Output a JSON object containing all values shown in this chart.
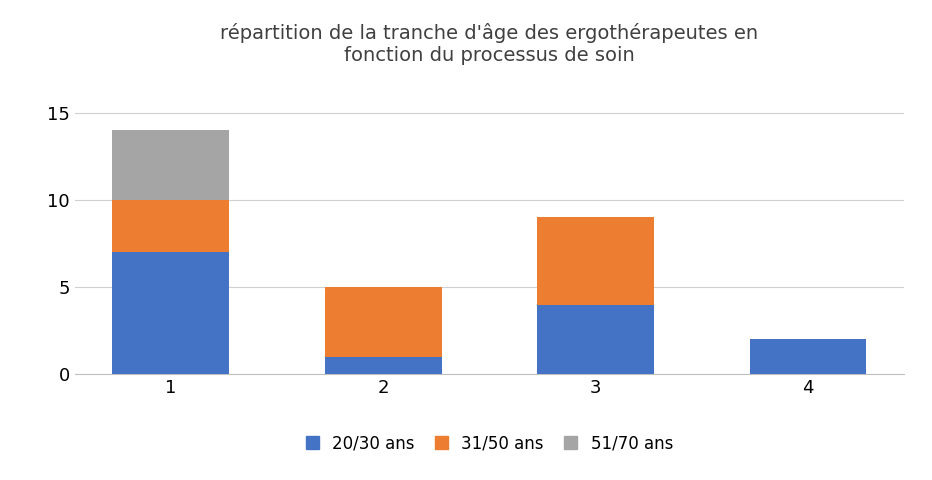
{
  "title": "répartition de la tranche d'âge des ergothérapeutes en\nfonction du processus de soin",
  "categories": [
    "1",
    "2",
    "3",
    "4"
  ],
  "series": {
    "20/30 ans": [
      7,
      1,
      4,
      2
    ],
    "31/50 ans": [
      3,
      4,
      5,
      0
    ],
    "51/70 ans": [
      4,
      0,
      0,
      0
    ]
  },
  "colors": {
    "20/30 ans": "#4472C4",
    "31/50 ans": "#ED7D31",
    "51/70 ans": "#A5A5A5"
  },
  "ylim": [
    0,
    16.5
  ],
  "yticks": [
    0,
    5,
    10,
    15
  ],
  "bar_width": 0.55,
  "background_color": "#FFFFFF",
  "legend_labels": [
    "20/30 ans",
    "31/50 ans",
    "51/70 ans"
  ],
  "title_fontsize": 14,
  "tick_fontsize": 13,
  "legend_fontsize": 12
}
